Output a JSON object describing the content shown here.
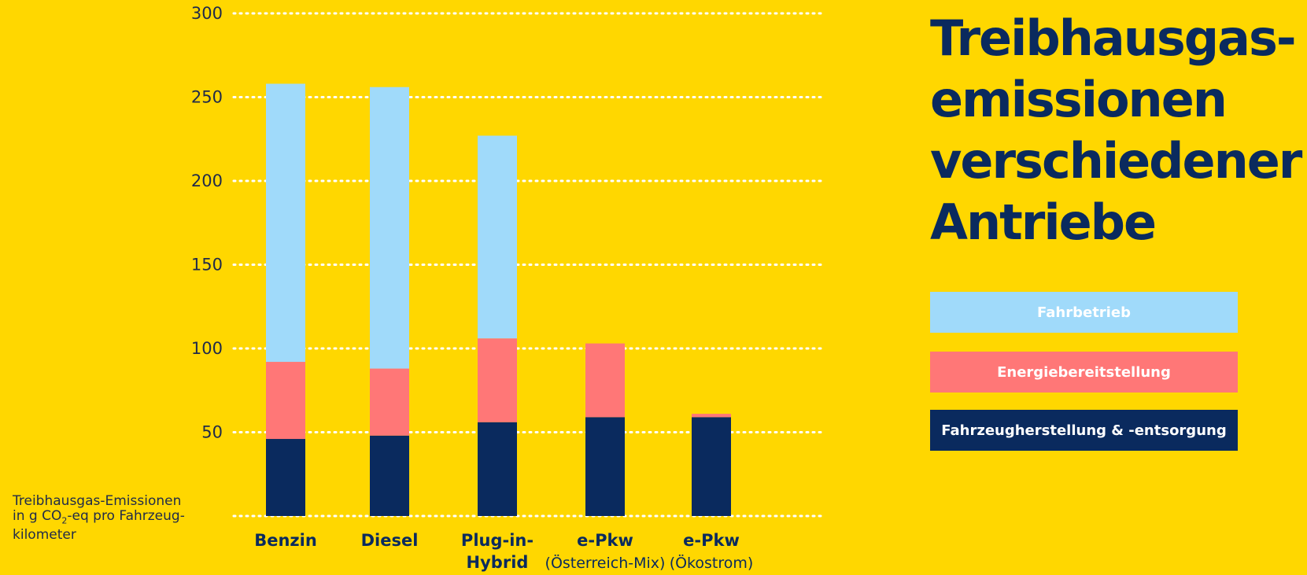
{
  "colors": {
    "background": "#FFD700",
    "fahrbetrieb": "#A0DAFA",
    "energie": "#FF7777",
    "herstellung": "#0A2A5E",
    "text": "#0A2A5E"
  },
  "ylabel_lines": {
    "l1": "Treibhausgas-Emissionen",
    "l2_pre": "in g CO",
    "l2_sub": "2",
    "l2_post": "-eq pro Fahrzeug-",
    "l3": "kilometer"
  },
  "title_lines": [
    "Treibhausgas-",
    "emissionen",
    "verschiedener",
    "Antriebe"
  ],
  "chart_data": {
    "type": "bar",
    "stacked": true,
    "title": "Treibhausgas-emissionen verschiedener Antriebe",
    "ylabel": "Treibhausgas-Emissionen in g CO2-eq pro Fahrzeug-kilometer",
    "ylim": [
      0,
      300
    ],
    "yticks": [
      50,
      100,
      150,
      200,
      250,
      300
    ],
    "grid": true,
    "legend_position": "right",
    "categories": [
      {
        "main": "Benzin",
        "sub": ""
      },
      {
        "main": "Diesel",
        "sub": ""
      },
      {
        "main": "Plug-in-",
        "sub": "Hybrid",
        "sub_bold": true
      },
      {
        "main": "e-Pkw",
        "sub": "(Österreich-Mix)"
      },
      {
        "main": "e-Pkw",
        "sub": "(Ökostrom)"
      }
    ],
    "series": [
      {
        "name": "Fahrzeugherstellung & -entsorgung",
        "color": "#0A2A5E",
        "values": [
          46,
          48,
          56,
          59,
          59
        ]
      },
      {
        "name": "Energiebereitstellung",
        "color": "#FF7777",
        "values": [
          46,
          40,
          50,
          44,
          2
        ]
      },
      {
        "name": "Fahrbetrieb",
        "color": "#A0DAFA",
        "values": [
          166,
          168,
          121,
          0,
          0
        ]
      }
    ]
  }
}
